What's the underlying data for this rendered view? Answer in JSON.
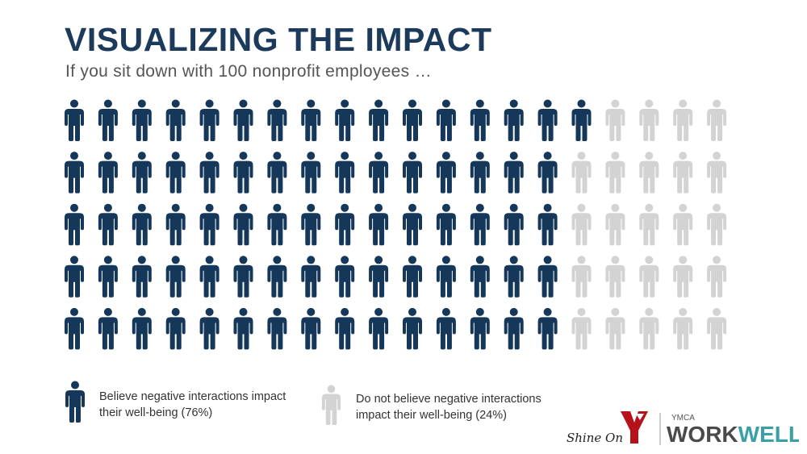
{
  "title": "VISUALIZING THE IMPACT",
  "subtitle": "If you sit down with 100 nonprofit employees …",
  "chart_data": {
    "type": "pictogram",
    "total": 100,
    "rows": 5,
    "columns": 20,
    "fill_order": "column-major by row: first row 16, other rows 15",
    "series": [
      {
        "name": "Believe negative interactions impact their well-being (76%)",
        "value": 76,
        "color": "#14375a"
      },
      {
        "name": "Do not believe negative interactions impact their well-being (24%)",
        "value": 24,
        "color": "#d3d3d3"
      }
    ],
    "row_counts_highlighted": [
      16,
      15,
      15,
      15,
      15
    ]
  },
  "legend": {
    "items": [
      {
        "line1": "Believe negative interactions impact",
        "line2": "their well-being (76%)",
        "icon": "person-icon",
        "color": "#14375a"
      },
      {
        "line1": "Do not believe negative interactions",
        "line2": "impact their well-being (24%)",
        "icon": "person-icon",
        "color": "#d3d3d3"
      }
    ]
  },
  "logo": {
    "tagline": "Shine On",
    "brand_small": "YMCA",
    "brand_a": "WORK",
    "brand_b": "WELL",
    "colors": {
      "red": "#b5121b",
      "gray": "#4a4a4a",
      "teal": "#3aa0a6"
    }
  }
}
